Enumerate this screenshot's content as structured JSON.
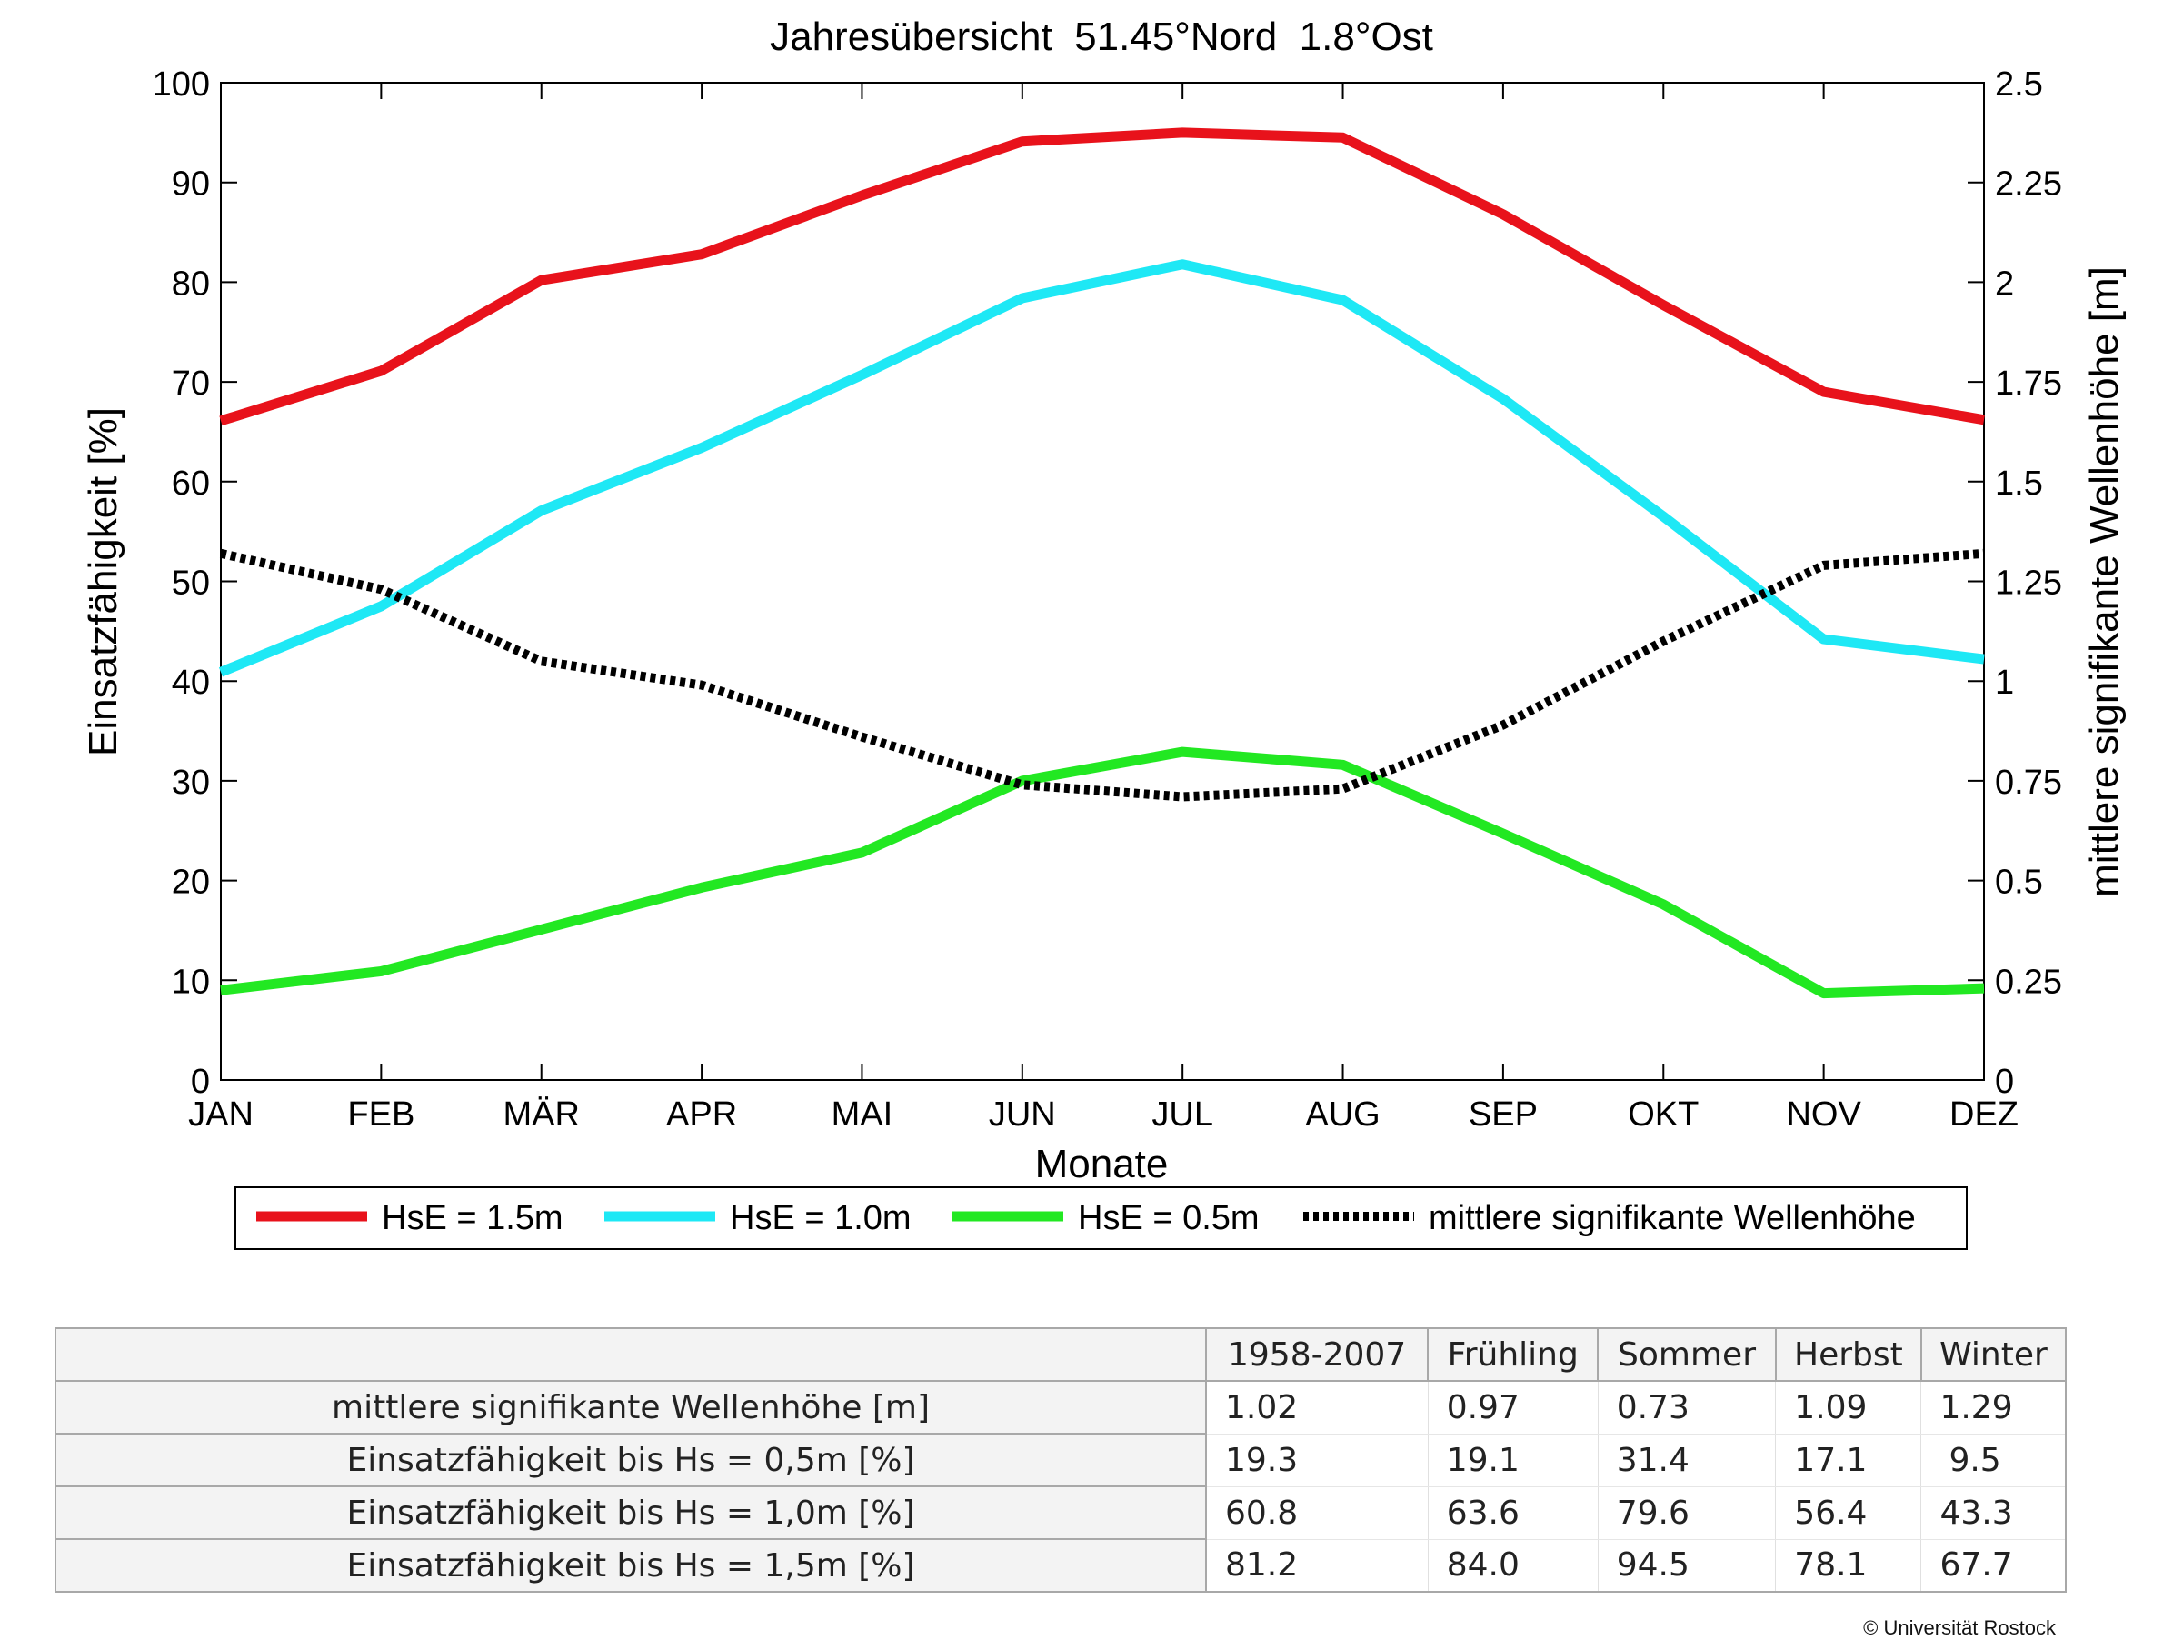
{
  "chart_data": {
    "type": "line",
    "title": "Jahresübersicht  51.45°Nord  1.8°Ost",
    "xlabel": "Monate",
    "ylabel_left": "Einsatzfähigkeit [%]",
    "ylabel_right": "mittlere signifikante Wellenhöhe [m]",
    "categories": [
      "JAN",
      "FEB",
      "MÄR",
      "APR",
      "MAI",
      "JUN",
      "JUL",
      "AUG",
      "SEP",
      "OKT",
      "NOV",
      "DEZ"
    ],
    "ylim_left": [
      0,
      100
    ],
    "yticks_left": [
      "0",
      "10",
      "20",
      "30",
      "40",
      "50",
      "60",
      "70",
      "80",
      "90",
      "100"
    ],
    "ylim_right": [
      0,
      2.5
    ],
    "yticks_right": [
      "0",
      "0.25",
      "0.5",
      "0.75",
      "1",
      "1.25",
      "1.5",
      "1.75",
      "2",
      "2.25",
      "2.5"
    ],
    "grid": false,
    "legend_position": "bottom",
    "series": [
      {
        "name": "HsE = 1.5m",
        "color": "#e8121b",
        "style": "solid",
        "axis": "left",
        "values": [
          66.1,
          71.1,
          80.2,
          82.8,
          88.7,
          94.1,
          95.0,
          94.5,
          86.8,
          77.7,
          69.0,
          66.2
        ]
      },
      {
        "name": "HsE = 1.0m",
        "color": "#1ee8f5",
        "style": "solid",
        "axis": "left",
        "values": [
          40.9,
          47.5,
          57.1,
          63.4,
          70.7,
          78.4,
          81.8,
          78.2,
          68.3,
          56.5,
          44.2,
          42.2
        ]
      },
      {
        "name": "HsE = 0.5m",
        "color": "#22e822",
        "style": "solid",
        "axis": "left",
        "values": [
          9.0,
          10.9,
          15.1,
          19.3,
          22.8,
          30.0,
          32.9,
          31.6,
          24.7,
          17.6,
          8.7,
          9.2
        ]
      },
      {
        "name": "mittlere signifikante Wellenhöhe",
        "color": "#000000",
        "style": "dotted",
        "axis": "right",
        "values": [
          1.32,
          1.23,
          1.05,
          0.99,
          0.86,
          0.74,
          0.71,
          0.73,
          0.89,
          1.1,
          1.29,
          1.32
        ]
      }
    ]
  },
  "table": {
    "columns": [
      "1958-2007",
      "Frühling",
      "Sommer",
      "Herbst",
      "Winter"
    ],
    "rows": [
      {
        "label": "mittlere signifikante Wellenhöhe [m]",
        "values": [
          "1.02",
          "0.97",
          "0.73",
          "1.09",
          "1.29"
        ]
      },
      {
        "label": "Einsatzfähigkeit bis Hs = 0,5m [%]",
        "values": [
          "19.3",
          "19.1",
          "31.4",
          "17.1",
          "9.5"
        ]
      },
      {
        "label": "Einsatzfähigkeit bis Hs = 1,0m [%]",
        "values": [
          "60.8",
          "63.6",
          "79.6",
          "56.4",
          "43.3"
        ]
      },
      {
        "label": "Einsatzfähigkeit bis Hs = 1,5m [%]",
        "values": [
          "81.2",
          "84.0",
          "94.5",
          "78.1",
          "67.7"
        ]
      }
    ]
  },
  "copyright": "© Universität Rostock"
}
